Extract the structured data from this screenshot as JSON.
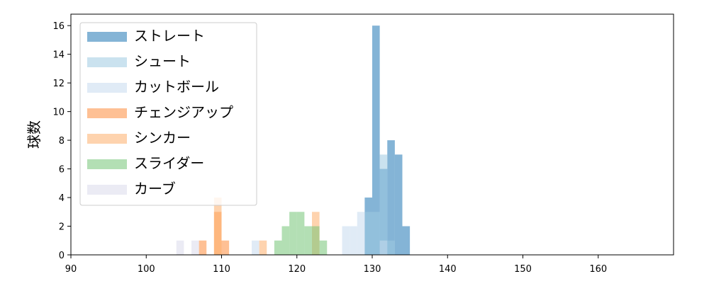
{
  "chart_data": {
    "type": "histogram",
    "y_label": "球数",
    "xlim": [
      90,
      170
    ],
    "ylim": [
      0,
      16.8
    ],
    "xticks": [
      90,
      100,
      110,
      120,
      130,
      140,
      150,
      160
    ],
    "yticks": [
      0,
      2,
      4,
      6,
      8,
      10,
      12,
      14,
      16
    ],
    "legend": "upper left",
    "series": [
      {
        "name": "ストレート",
        "color": "#1f77b4",
        "bins": [
          129,
          130,
          131,
          132,
          133,
          134,
          135
        ],
        "values": [
          4,
          16,
          6,
          8,
          7,
          2
        ]
      },
      {
        "name": "シュート",
        "color": "#9ecae1",
        "bins": [
          129,
          130,
          131,
          132,
          133
        ],
        "values": [
          3,
          3,
          7,
          1
        ]
      },
      {
        "name": "カットボール",
        "color": "#c6dbef",
        "bins": [
          114,
          115,
          116,
          117,
          118,
          119,
          120,
          121,
          122,
          123,
          124,
          125,
          126,
          127,
          128,
          129,
          130,
          131,
          132
        ],
        "values": [
          1,
          0,
          0,
          0,
          0,
          0,
          0,
          0,
          0,
          0,
          0,
          0,
          2,
          2,
          3,
          0,
          0,
          1
        ]
      },
      {
        "name": "チェンジアップ",
        "color": "#fd8d3c",
        "bins": [
          107,
          108,
          109,
          110,
          111
        ],
        "values": [
          1,
          0,
          3,
          1
        ]
      },
      {
        "name": "シンカー",
        "color": "#fdae6b",
        "bins": [
          109,
          110,
          111,
          112,
          113,
          114,
          115,
          116,
          117,
          118,
          119,
          120,
          121,
          122,
          123
        ],
        "values": [
          4,
          0,
          0,
          0,
          0,
          0,
          1,
          0,
          0,
          0,
          0,
          0,
          0,
          3
        ]
      },
      {
        "name": "スライダー",
        "color": "#74c476",
        "bins": [
          117,
          118,
          119,
          120,
          121,
          122,
          123,
          124
        ],
        "values": [
          1,
          2,
          3,
          3,
          2,
          2,
          1
        ]
      },
      {
        "name": "カーブ",
        "color": "#dadaeb",
        "bins": [
          104,
          105,
          106,
          107
        ],
        "values": [
          1,
          0,
          1
        ]
      }
    ]
  }
}
